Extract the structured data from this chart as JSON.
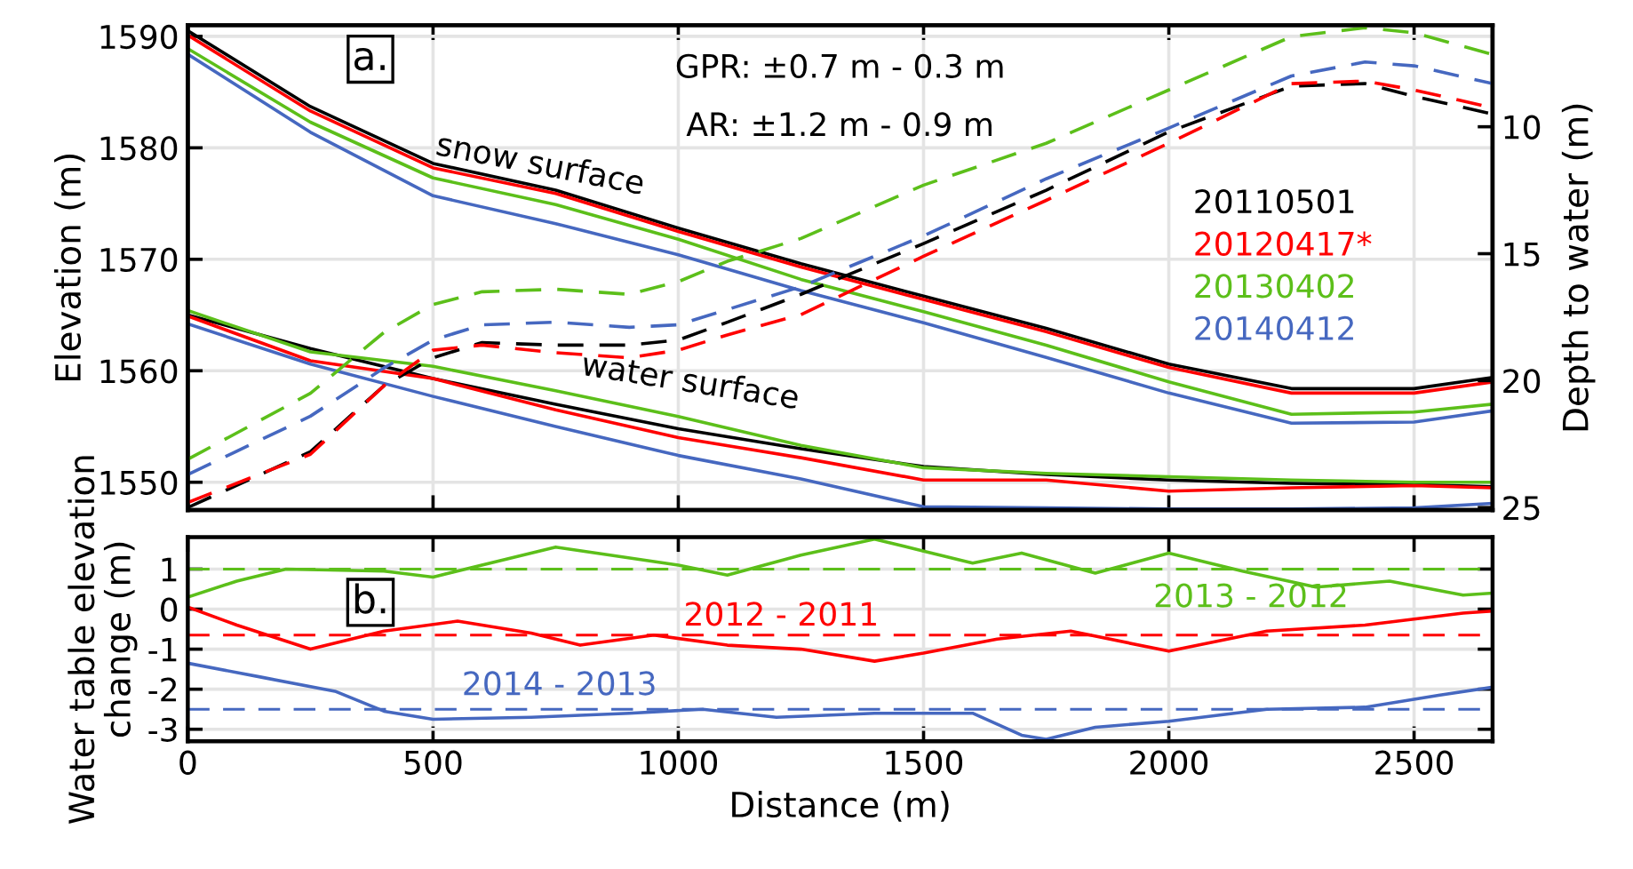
{
  "chart_data": [
    {
      "type": "line",
      "ylabel": "Elevation (m)",
      "y2label": "Depth to water (m)",
      "xlim": [
        0,
        2660
      ],
      "xticks": [
        0,
        500,
        1000,
        1500,
        2000,
        2500
      ],
      "ylim": [
        1547.5,
        1591
      ],
      "yticks": [
        1550,
        1560,
        1570,
        1580,
        1590
      ],
      "y2lim": [
        25.1,
        6
      ],
      "y2ticks": [
        10,
        15,
        20,
        25
      ],
      "grid": true,
      "legend": "right",
      "tick_labels": "y",
      "annotations": [
        "a.",
        "GPR: ±0.7 m - 0.3 m",
        "AR: ±1.2 m - 0.9 m",
        "snow surface",
        "water surface"
      ],
      "series": [
        {
          "name": "20110501",
          "color": "#000000",
          "x": [
            0,
            250,
            500,
            750,
            1000,
            1250,
            1500,
            1750,
            2000,
            2250,
            2500,
            2660
          ],
          "values": [
            1590.5,
            1583.7,
            1578.6,
            1576.2,
            1572.8,
            1569.6,
            1566.7,
            1563.8,
            1560.6,
            1558.4,
            1558.4,
            1559.4
          ]
        },
        {
          "name": "20120417*",
          "color": "#ff0000",
          "x": [
            0,
            250,
            500,
            750,
            1000,
            1250,
            1500,
            1750,
            2000,
            2250,
            2500,
            2660
          ],
          "values": [
            1590.1,
            1583.3,
            1578.2,
            1575.9,
            1572.5,
            1569.3,
            1566.4,
            1563.5,
            1560.3,
            1558.0,
            1558.0,
            1559.0
          ]
        },
        {
          "name": "20130402",
          "color": "#5cbf1a",
          "x": [
            0,
            250,
            500,
            750,
            1000,
            1250,
            1500,
            1750,
            2000,
            2250,
            2500,
            2660
          ],
          "values": [
            1588.9,
            1582.3,
            1577.3,
            1574.9,
            1571.8,
            1568.2,
            1565.3,
            1562.3,
            1559.0,
            1556.1,
            1556.3,
            1557.0
          ]
        },
        {
          "name": "20140412",
          "color": "#4668c0",
          "x": [
            0,
            250,
            500,
            750,
            1000,
            1250,
            1500,
            1750,
            2000,
            2250,
            2500,
            2660
          ],
          "values": [
            1588.4,
            1581.4,
            1575.7,
            1573.2,
            1570.4,
            1567.2,
            1564.3,
            1561.2,
            1558.0,
            1555.3,
            1555.4,
            1556.4
          ]
        },
        {
          "color": "#000000",
          "x": [
            0,
            250,
            500,
            750,
            1000,
            1250,
            1500,
            1750,
            2000,
            2250,
            2500,
            2660
          ],
          "values": [
            1565.0,
            1562.0,
            1559.3,
            1557.0,
            1554.8,
            1553.0,
            1551.4,
            1550.7,
            1550.2,
            1549.9,
            1549.8,
            1549.6
          ]
        },
        {
          "color": "#ff0000",
          "x": [
            0,
            250,
            500,
            750,
            1000,
            1250,
            1500,
            1750,
            2000,
            2250,
            2500,
            2660
          ],
          "values": [
            1564.9,
            1560.9,
            1559.3,
            1556.5,
            1554.0,
            1552.2,
            1550.2,
            1550.2,
            1549.2,
            1549.5,
            1549.7,
            1549.5
          ]
        },
        {
          "color": "#5cbf1a",
          "x": [
            0,
            250,
            500,
            750,
            1000,
            1250,
            1500,
            1750,
            2000,
            2250,
            2500,
            2660
          ],
          "values": [
            1565.4,
            1561.7,
            1560.4,
            1558.2,
            1555.9,
            1553.3,
            1551.3,
            1550.8,
            1550.5,
            1550.2,
            1550.0,
            1550.0
          ]
        },
        {
          "color": "#4668c0",
          "x": [
            0,
            250,
            500,
            750,
            1000,
            1250,
            1500,
            1750,
            2000,
            2250,
            2500,
            2660
          ],
          "values": [
            1564.2,
            1560.6,
            1557.7,
            1555.0,
            1552.4,
            1550.3,
            1547.8,
            1547.7,
            1547.6,
            1547.6,
            1547.7,
            1548.1
          ]
        },
        {
          "color": "#000000",
          "axis": "y2",
          "line_style": "dashed",
          "x": [
            0,
            250,
            400,
            500,
            600,
            750,
            900,
            1000,
            1100,
            1250,
            1500,
            1750,
            2000,
            2250,
            2400,
            2500,
            2660
          ],
          "values": [
            25.0,
            22.8,
            20.2,
            19.1,
            18.5,
            18.6,
            18.6,
            18.4,
            17.7,
            16.6,
            14.6,
            12.5,
            10.2,
            8.4,
            8.3,
            8.8,
            9.5
          ]
        },
        {
          "color": "#ff0000",
          "axis": "y2",
          "line_style": "dashed",
          "x": [
            0,
            250,
            400,
            500,
            600,
            750,
            900,
            1000,
            1100,
            1250,
            1500,
            1750,
            2000,
            2250,
            2400,
            2500,
            2660
          ],
          "values": [
            24.8,
            22.9,
            20.2,
            18.8,
            18.6,
            18.9,
            19.1,
            18.8,
            18.2,
            17.4,
            15.1,
            12.9,
            10.65,
            8.3,
            8.2,
            8.55,
            9.25
          ]
        },
        {
          "color": "#5cbf1a",
          "axis": "y2",
          "line_style": "dashed",
          "x": [
            0,
            250,
            400,
            500,
            600,
            750,
            900,
            1000,
            1100,
            1250,
            1500,
            1750,
            2000,
            2250,
            2400,
            2500,
            2660
          ],
          "values": [
            23.1,
            20.5,
            18.1,
            17.0,
            16.5,
            16.4,
            16.6,
            16.1,
            15.3,
            14.4,
            12.3,
            10.65,
            8.55,
            6.45,
            6.1,
            6.3,
            7.15
          ]
        },
        {
          "color": "#4668c0",
          "axis": "y2",
          "line_style": "dashed",
          "x": [
            0,
            250,
            400,
            500,
            600,
            750,
            900,
            1000,
            1100,
            1250,
            1500,
            1750,
            2000,
            2250,
            2400,
            2500,
            2660
          ],
          "values": [
            23.7,
            21.4,
            19.5,
            18.4,
            17.8,
            17.7,
            17.9,
            17.8,
            17.2,
            16.3,
            14.3,
            12.05,
            10.05,
            8.0,
            7.45,
            7.6,
            8.3
          ]
        }
      ]
    },
    {
      "type": "line",
      "xlabel": "Distance (m)",
      "ylabel": "Water table elevation\nchange (m)",
      "xlim": [
        0,
        2660
      ],
      "xticks": [
        0,
        500,
        1000,
        1500,
        2000,
        2500
      ],
      "ylim": [
        -3.3,
        1.8
      ],
      "yticks": [
        -3,
        -2,
        -1,
        0,
        1
      ],
      "grid": true,
      "annotations": [
        "b."
      ],
      "ref_lines": [
        {
          "axis": "y",
          "value": 1.0,
          "color": "#5cbf1a",
          "line_style": "dashed"
        },
        {
          "axis": "y",
          "value": -0.65,
          "color": "#ff0000",
          "line_style": "dashed"
        },
        {
          "axis": "y",
          "value": -2.5,
          "color": "#4668c0",
          "line_style": "dashed"
        }
      ],
      "series": [
        {
          "name": "2013 - 2012",
          "color": "#5cbf1a",
          "x": [
            0,
            100,
            200,
            400,
            500,
            750,
            1000,
            1100,
            1250,
            1400,
            1500,
            1600,
            1700,
            1850,
            2000,
            2150,
            2300,
            2450,
            2600,
            2660
          ],
          "values": [
            0.3,
            0.7,
            1.0,
            0.95,
            0.8,
            1.55,
            1.1,
            0.85,
            1.35,
            1.75,
            1.45,
            1.15,
            1.4,
            0.9,
            1.4,
            0.95,
            0.55,
            0.7,
            0.35,
            0.4
          ]
        },
        {
          "name": "2012 - 2011",
          "color": "#ff0000",
          "x": [
            0,
            100,
            250,
            400,
            550,
            700,
            800,
            950,
            1100,
            1250,
            1400,
            1500,
            1650,
            1800,
            2000,
            2200,
            2400,
            2600,
            2660
          ],
          "values": [
            0.05,
            -0.4,
            -1.0,
            -0.55,
            -0.3,
            -0.6,
            -0.9,
            -0.65,
            -0.9,
            -1.0,
            -1.3,
            -1.1,
            -0.75,
            -0.55,
            -1.05,
            -0.55,
            -0.4,
            -0.1,
            -0.05
          ]
        },
        {
          "name": "2014 - 2013",
          "color": "#4668c0",
          "x": [
            0,
            150,
            300,
            400,
            500,
            700,
            900,
            1050,
            1200,
            1400,
            1600,
            1700,
            1750,
            1850,
            2000,
            2200,
            2400,
            2550,
            2660
          ],
          "values": [
            -1.35,
            -1.7,
            -2.05,
            -2.55,
            -2.75,
            -2.7,
            -2.6,
            -2.5,
            -2.7,
            -2.6,
            -2.6,
            -3.15,
            -3.25,
            -2.95,
            -2.8,
            -2.5,
            -2.45,
            -2.15,
            -1.95
          ]
        }
      ]
    }
  ]
}
